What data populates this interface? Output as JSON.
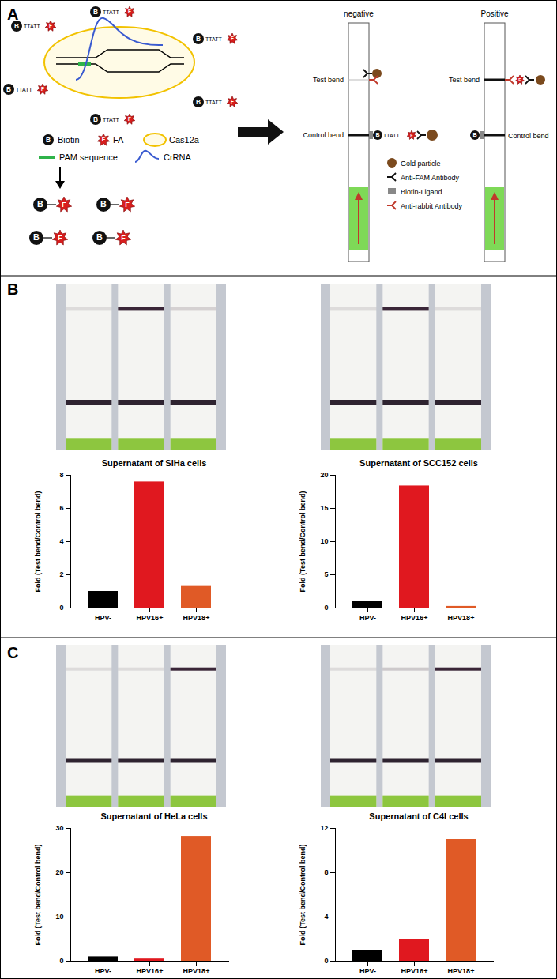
{
  "panels": [
    "A",
    "B",
    "C"
  ],
  "diagram": {
    "reporter": [
      "B",
      "TTATT",
      "F"
    ],
    "legend": {
      "biotin": "Biotin",
      "fa": "FA",
      "cas12a": "Cas12a",
      "pam": "PAM sequence",
      "crrna": "CrRNA"
    },
    "strips": {
      "negative": "negative",
      "positive": "Positive",
      "test": "Test bend",
      "control": "Control bend"
    },
    "strip_legend": [
      "Gold particle",
      "Anti-FAM Antibody",
      "Biotin-Ligand",
      "Anti-rabbit Antibody"
    ]
  },
  "chart_data": [
    {
      "type": "bar",
      "title": "Supernatant of SiHa cells",
      "y_label": "Fold (Test bend/Control bend)",
      "categories": [
        "HPV-",
        "HPV16+",
        "HPV18+"
      ],
      "values": [
        1.0,
        7.6,
        1.35
      ],
      "colors": [
        "#000000",
        "#e0181f",
        "#e05a26"
      ],
      "ylim": [
        0,
        8
      ],
      "yticks": [
        0,
        2,
        4,
        6,
        8
      ]
    },
    {
      "type": "bar",
      "title": "Supernatant of SCC152 cells",
      "y_label": "Fold (Test bend/Control bend)",
      "categories": [
        "HPV-",
        "HPV16+",
        "HPV18+"
      ],
      "values": [
        1.0,
        18.4,
        0.25
      ],
      "colors": [
        "#000000",
        "#e0181f",
        "#e05a26"
      ],
      "ylim": [
        0,
        20
      ],
      "yticks": [
        0,
        5,
        10,
        15,
        20
      ]
    },
    {
      "type": "bar",
      "title": "Supernatant of HeLa cells",
      "y_label": "Fold (Test bend/Control bend)",
      "categories": [
        "HPV-",
        "HPV16+",
        "HPV18+"
      ],
      "values": [
        1.0,
        0.5,
        28.2
      ],
      "colors": [
        "#000000",
        "#e0181f",
        "#e05a26"
      ],
      "ylim": [
        0,
        30
      ],
      "yticks": [
        0,
        10,
        20,
        30
      ]
    },
    {
      "type": "bar",
      "title": "Supernatant of C4I cells",
      "y_label": "Fold (Test bend/Control bend)",
      "categories": [
        "HPV-",
        "HPV16+",
        "HPV18+"
      ],
      "values": [
        1.0,
        2.0,
        11.0
      ],
      "colors": [
        "#000000",
        "#e0181f",
        "#e05a26"
      ],
      "ylim": [
        0,
        12
      ],
      "yticks": [
        0,
        4,
        8,
        12
      ]
    }
  ]
}
